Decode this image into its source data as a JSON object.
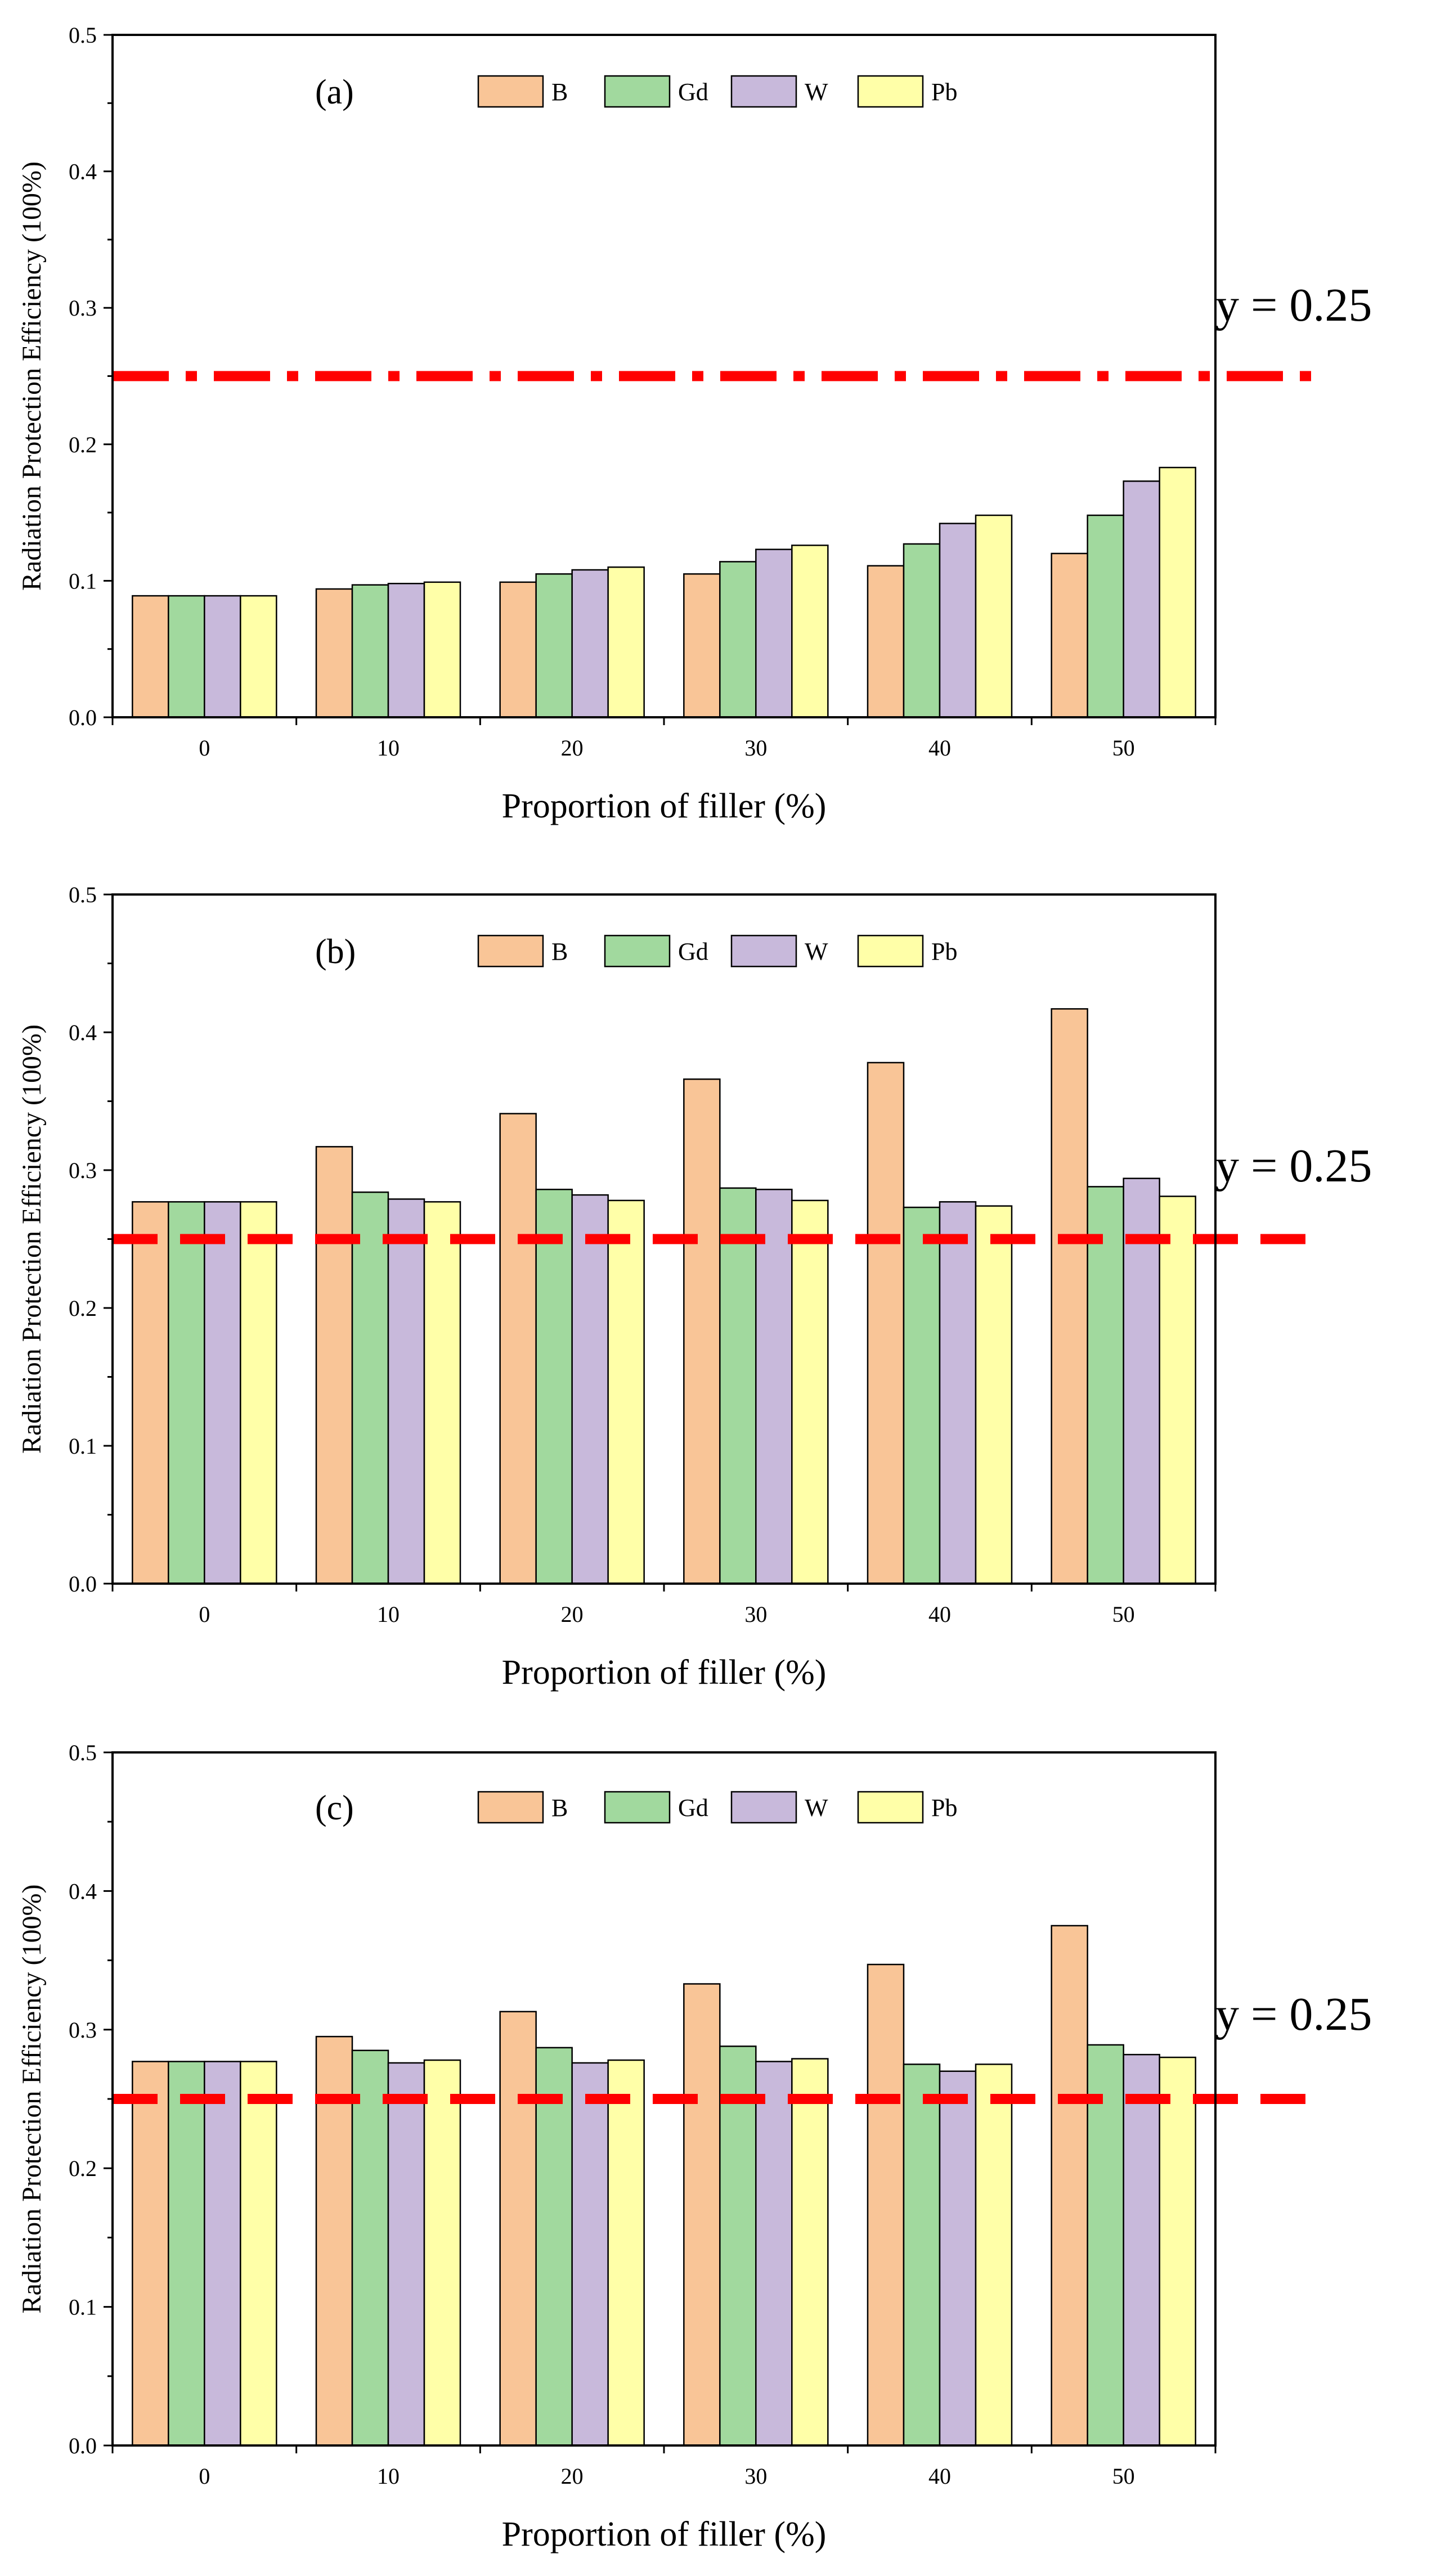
{
  "colors": {
    "B": "#F9C597",
    "Gd": "#A1D99E",
    "W": "#C8B9DB",
    "Pb": "#FFFFA8",
    "ref_line": "#FF0000",
    "axis": "#000000"
  },
  "chart_data": [
    {
      "type": "bar",
      "panel_label": "(a)",
      "categories": [
        "0",
        "10",
        "20",
        "30",
        "40",
        "50"
      ],
      "series": [
        {
          "name": "B",
          "values": [
            0.089,
            0.094,
            0.099,
            0.105,
            0.111,
            0.12
          ]
        },
        {
          "name": "Gd",
          "values": [
            0.089,
            0.097,
            0.105,
            0.114,
            0.127,
            0.148
          ]
        },
        {
          "name": "W",
          "values": [
            0.089,
            0.098,
            0.108,
            0.123,
            0.142,
            0.173
          ]
        },
        {
          "name": "Pb",
          "values": [
            0.089,
            0.099,
            0.11,
            0.126,
            0.148,
            0.183
          ]
        }
      ],
      "xlabel": "Proportion of filler (%)",
      "ylabel": "Radiation Protection Efficiency (100%)",
      "ylim": [
        0,
        0.5
      ],
      "yticks": [
        "0.0",
        "0.1",
        "0.2",
        "0.3",
        "0.4",
        "0.5"
      ],
      "legend": [
        "B",
        "Gd",
        "W",
        "Pb"
      ],
      "reference_line": {
        "y": 0.25,
        "label": "y = 0.25",
        "style": "dash-dot"
      }
    },
    {
      "type": "bar",
      "panel_label": "(b)",
      "categories": [
        "0",
        "10",
        "20",
        "30",
        "40",
        "50"
      ],
      "series": [
        {
          "name": "B",
          "values": [
            0.277,
            0.317,
            0.341,
            0.366,
            0.378,
            0.417
          ]
        },
        {
          "name": "Gd",
          "values": [
            0.277,
            0.284,
            0.286,
            0.287,
            0.273,
            0.288
          ]
        },
        {
          "name": "W",
          "values": [
            0.277,
            0.279,
            0.282,
            0.286,
            0.277,
            0.294
          ]
        },
        {
          "name": "Pb",
          "values": [
            0.277,
            0.277,
            0.278,
            0.278,
            0.274,
            0.281
          ]
        }
      ],
      "xlabel": "Proportion of filler (%)",
      "ylabel": "Radiation Protection Efficiency (100%)",
      "ylim": [
        0,
        0.5
      ],
      "yticks": [
        "0.0",
        "0.1",
        "0.2",
        "0.3",
        "0.4",
        "0.5"
      ],
      "legend": [
        "B",
        "Gd",
        "W",
        "Pb"
      ],
      "reference_line": {
        "y": 0.25,
        "label": "y = 0.25",
        "style": "dashed"
      }
    },
    {
      "type": "bar",
      "panel_label": "(c)",
      "categories": [
        "0",
        "10",
        "20",
        "30",
        "40",
        "50"
      ],
      "series": [
        {
          "name": "B",
          "values": [
            0.277,
            0.295,
            0.313,
            0.333,
            0.347,
            0.375
          ]
        },
        {
          "name": "Gd",
          "values": [
            0.277,
            0.285,
            0.287,
            0.288,
            0.275,
            0.289
          ]
        },
        {
          "name": "W",
          "values": [
            0.277,
            0.276,
            0.276,
            0.277,
            0.27,
            0.282
          ]
        },
        {
          "name": "Pb",
          "values": [
            0.277,
            0.278,
            0.278,
            0.279,
            0.275,
            0.28
          ]
        }
      ],
      "xlabel": "Proportion of filler (%)",
      "ylabel": "Radiation Protection Efficiency (100%)",
      "ylim": [
        0,
        0.5
      ],
      "yticks": [
        "0.0",
        "0.1",
        "0.2",
        "0.3",
        "0.4",
        "0.5"
      ],
      "legend": [
        "B",
        "Gd",
        "W",
        "Pb"
      ],
      "reference_line": {
        "y": 0.25,
        "label": "y = 0.25",
        "style": "dashed"
      }
    }
  ]
}
